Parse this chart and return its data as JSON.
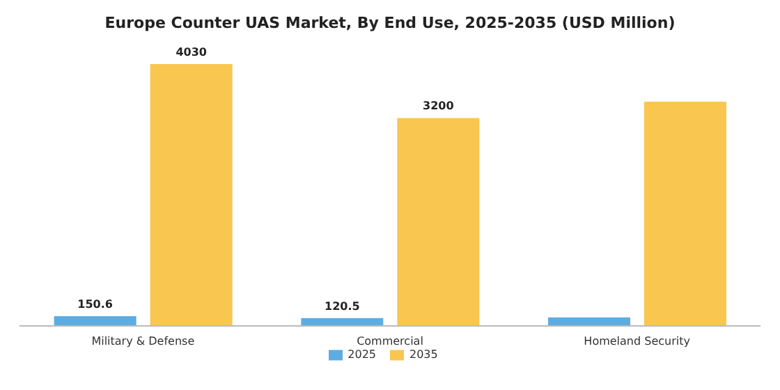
{
  "chart_data": {
    "type": "bar",
    "title": "Europe Counter UAS Market, By End Use, 2025-2035 (USD Million)",
    "categories": [
      "Military & Defense",
      "Commercial",
      "Homeland Security"
    ],
    "series": [
      {
        "name": "2025",
        "color": "#5dade2",
        "values": [
          150.6,
          120.5,
          130
        ],
        "value_labels": [
          "150.6",
          "120.5",
          null
        ]
      },
      {
        "name": "2035",
        "color": "#f9c74f",
        "values": [
          4030,
          3200,
          3450
        ],
        "value_labels": [
          "4030",
          "3200",
          null
        ]
      }
    ],
    "tick_labels": "x",
    "legend": "bottom",
    "grid": false
  }
}
